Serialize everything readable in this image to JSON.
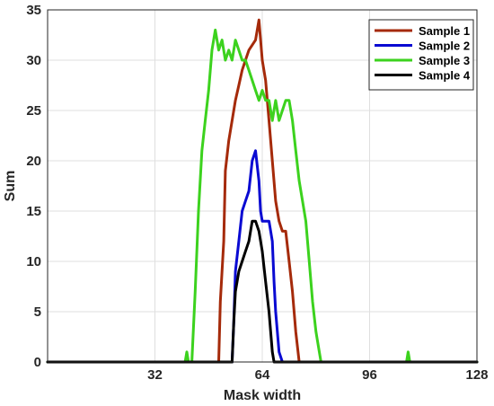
{
  "chart_data": {
    "type": "line",
    "title": "",
    "xlabel": "Mask width",
    "ylabel": "Sum",
    "xlim": [
      0,
      128
    ],
    "ylim": [
      0,
      35
    ],
    "xticks": [
      32,
      64,
      96,
      128
    ],
    "yticks": [
      0,
      5,
      10,
      15,
      20,
      25,
      30,
      35
    ],
    "grid": true,
    "legend_position": "top-right",
    "series": [
      {
        "name": "Sample 1",
        "color": "#a52a0a",
        "x": [
          0,
          51,
          51.5,
          52.5,
          53,
          54,
          55,
          56,
          57,
          58,
          59,
          60,
          61,
          62,
          63,
          64,
          65,
          66,
          67,
          68,
          69,
          70,
          71,
          72,
          73,
          74,
          75,
          128
        ],
        "y": [
          0,
          0,
          6,
          12,
          19,
          22,
          24,
          26,
          27.5,
          29,
          30,
          31,
          31.5,
          32,
          34,
          30,
          28,
          24,
          20,
          16,
          14,
          13,
          13,
          10,
          7,
          3,
          0,
          0
        ]
      },
      {
        "name": "Sample 2",
        "color": "#0a0ad2",
        "x": [
          0,
          55,
          55.5,
          56,
          57,
          58,
          59,
          60,
          61,
          62,
          63,
          63.5,
          64,
          65,
          66,
          67,
          67.5,
          68,
          69,
          70,
          128
        ],
        "y": [
          0,
          0,
          4,
          9,
          12,
          15,
          16,
          17,
          20,
          21,
          18,
          15,
          14,
          14,
          14,
          12,
          8,
          5,
          1,
          0,
          0
        ]
      },
      {
        "name": "Sample 3",
        "color": "#3cd21e",
        "x": [
          0,
          41,
          41.5,
          42,
          42.5,
          43,
          44,
          45,
          46,
          47,
          48,
          49,
          50,
          51,
          52,
          53,
          54,
          55,
          56,
          57,
          58,
          59,
          60,
          61,
          62,
          63,
          64,
          65,
          66,
          67,
          68,
          69,
          70,
          71,
          72,
          73,
          74,
          75,
          76,
          77,
          78,
          79,
          80,
          81,
          81.5,
          82,
          107,
          107.5,
          108,
          128
        ],
        "y": [
          0,
          0,
          1,
          0,
          0,
          0,
          7,
          15,
          21,
          24,
          27,
          31,
          33,
          31,
          32,
          30,
          31,
          30,
          32,
          31,
          30,
          30,
          29,
          28,
          27,
          26,
          27,
          26,
          26,
          24,
          26,
          24,
          25,
          26,
          26,
          24,
          21,
          18,
          16,
          14,
          10,
          6,
          3,
          1,
          0,
          0,
          0,
          1,
          0,
          0
        ]
      },
      {
        "name": "Sample 4",
        "color": "#000000",
        "x": [
          0,
          55,
          55.5,
          56,
          57,
          58,
          59,
          60,
          61,
          62,
          63,
          64,
          65,
          66,
          67,
          67.5,
          68,
          128
        ],
        "y": [
          0,
          0,
          4,
          7,
          9,
          10,
          11,
          12,
          14,
          14,
          13,
          11,
          8,
          5,
          1,
          0,
          0,
          0
        ]
      }
    ]
  }
}
